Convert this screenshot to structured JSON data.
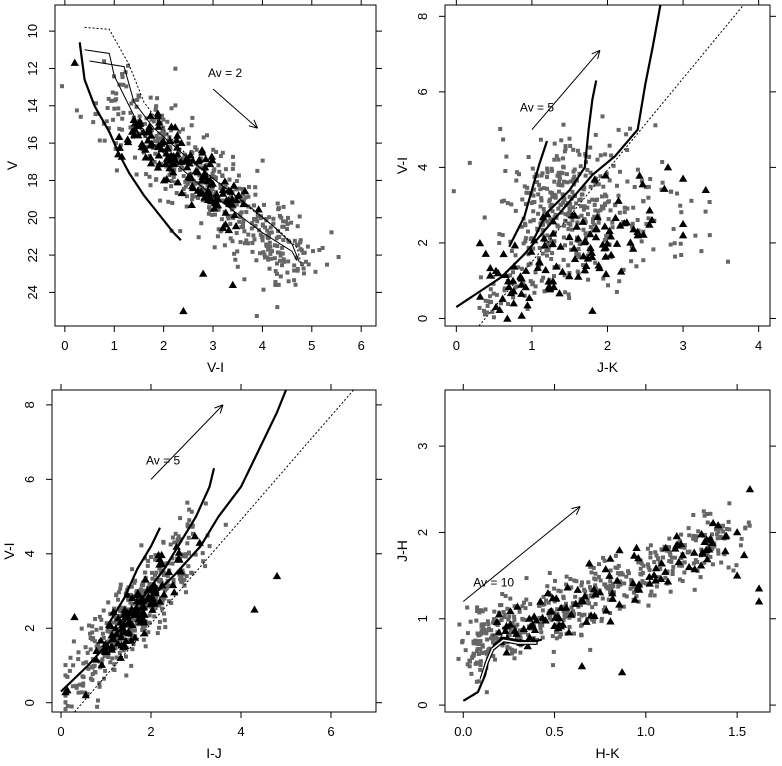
{
  "chart_data": [
    {
      "type": "scatter",
      "panel": "top-left",
      "xlabel": "V-I",
      "ylabel": "V",
      "xlim": [
        -0.2,
        6.3
      ],
      "ylim": [
        25.8,
        8.6
      ],
      "y_reversed": true,
      "xticks": [
        0,
        1,
        2,
        3,
        4,
        5,
        6
      ],
      "yticks": [
        10,
        12,
        14,
        16,
        18,
        20,
        22,
        24
      ],
      "annotation": {
        "text": "Av = 2",
        "arrow_from": [
          3.0,
          13.1
        ],
        "arrow_to": [
          3.9,
          15.2
        ]
      },
      "field_points": {
        "color": "#666666",
        "n": 460,
        "seed": 11
      },
      "triangles": {
        "color": "#000000",
        "n": 150,
        "seed": 12,
        "extra": [
          [
            2.4,
            25.0
          ],
          [
            2.8,
            23.0
          ],
          [
            3.4,
            23.6
          ],
          [
            0.2,
            11.7
          ]
        ]
      },
      "curves": [
        {
          "style": "thick",
          "points": [
            [
              0.3,
              10.6
            ],
            [
              0.4,
              12.6
            ],
            [
              0.6,
              14.0
            ],
            [
              0.9,
              15.4
            ],
            [
              1.1,
              16.6
            ],
            [
              1.3,
              17.6
            ],
            [
              1.6,
              18.8
            ],
            [
              1.9,
              19.8
            ],
            [
              2.2,
              20.8
            ],
            [
              2.35,
              21.2
            ]
          ]
        },
        {
          "style": "thin",
          "points": [
            [
              0.4,
              11.0
            ],
            [
              0.9,
              11.2
            ],
            [
              1.0,
              12.4
            ],
            [
              1.3,
              14.0
            ],
            [
              1.6,
              15.6
            ],
            [
              2.2,
              17.0
            ],
            [
              2.8,
              18.4
            ],
            [
              3.4,
              19.6
            ],
            [
              4.0,
              20.8
            ],
            [
              4.6,
              21.8
            ],
            [
              4.7,
              22.3
            ]
          ]
        },
        {
          "style": "thin",
          "points": [
            [
              0.5,
              11.6
            ],
            [
              1.2,
              11.9
            ],
            [
              1.4,
              13.8
            ],
            [
              1.8,
              15.2
            ],
            [
              2.4,
              16.6
            ],
            [
              3.0,
              17.9
            ],
            [
              3.6,
              19.1
            ],
            [
              4.2,
              20.4
            ],
            [
              4.6,
              21.4
            ],
            [
              4.75,
              22.4
            ]
          ]
        },
        {
          "style": "dotted",
          "points": [
            [
              0.4,
              9.8
            ],
            [
              0.9,
              9.9
            ],
            [
              1.3,
              11.8
            ],
            [
              1.6,
              13.8
            ],
            [
              2.1,
              15.6
            ],
            [
              2.6,
              17.0
            ],
            [
              3.2,
              18.3
            ],
            [
              3.8,
              19.6
            ],
            [
              4.3,
              20.6
            ],
            [
              4.7,
              21.6
            ],
            [
              4.8,
              22.6
            ]
          ]
        }
      ]
    },
    {
      "type": "scatter",
      "panel": "top-right",
      "xlabel": "J-K",
      "ylabel": "V-I",
      "xlim": [
        -0.15,
        4.15
      ],
      "ylim": [
        -0.2,
        8.3
      ],
      "xticks": [
        0,
        1,
        2,
        3,
        4
      ],
      "yticks": [
        0,
        2,
        4,
        6,
        8
      ],
      "annotation": {
        "text": "Av = 5",
        "arrow_from": [
          1.0,
          5.0
        ],
        "arrow_to": [
          1.9,
          7.1
        ]
      },
      "field_points": {
        "color": "#666666",
        "n": 430,
        "seed": 21
      },
      "triangles": {
        "color": "#000000",
        "n": 110,
        "seed": 22,
        "extra": [
          [
            2.8,
            4.0
          ],
          [
            3.0,
            3.7
          ],
          [
            3.3,
            3.4
          ],
          [
            3.0,
            2.5
          ],
          [
            3.0,
            2.2
          ],
          [
            2.4,
            2.2
          ],
          [
            1.8,
            0.2
          ]
        ]
      },
      "curves": [
        {
          "style": "thick",
          "points": [
            [
              0.0,
              0.3
            ],
            [
              0.3,
              0.7
            ],
            [
              0.6,
              1.1
            ],
            [
              0.9,
              1.7
            ],
            [
              1.2,
              2.4
            ],
            [
              1.5,
              3.1
            ],
            [
              1.8,
              3.8
            ],
            [
              2.1,
              4.3
            ],
            [
              2.4,
              5.0
            ],
            [
              2.5,
              6.2
            ],
            [
              2.6,
              7.2
            ],
            [
              2.7,
              8.3
            ]
          ]
        },
        {
          "style": "thick",
          "points": [
            [
              1.0,
              2.0
            ],
            [
              1.2,
              2.8
            ],
            [
              1.5,
              3.4
            ],
            [
              1.7,
              4.0
            ],
            [
              1.75,
              5.0
            ],
            [
              1.8,
              5.8
            ],
            [
              1.85,
              6.3
            ]
          ]
        },
        {
          "style": "thick",
          "points": [
            [
              0.7,
              1.9
            ],
            [
              0.9,
              2.7
            ],
            [
              1.0,
              3.4
            ],
            [
              1.1,
              4.1
            ],
            [
              1.2,
              4.7
            ]
          ]
        },
        {
          "style": "dotted",
          "points": [
            [
              0.3,
              -0.2
            ],
            [
              3.8,
              8.3
            ]
          ]
        }
      ]
    },
    {
      "type": "scatter",
      "panel": "bottom-left",
      "xlabel": "I-J",
      "ylabel": "V-I",
      "xlim": [
        -0.2,
        7.0
      ],
      "ylim": [
        -0.25,
        8.4
      ],
      "xticks": [
        0,
        2,
        4,
        6
      ],
      "yticks": [
        0,
        2,
        4,
        6,
        8
      ],
      "annotation": {
        "text": "Av = 5",
        "arrow_from": [
          2.0,
          6.0
        ],
        "arrow_to": [
          3.6,
          8.0
        ]
      },
      "field_points": {
        "color": "#666666",
        "n": 430,
        "seed": 31
      },
      "triangles": {
        "color": "#000000",
        "n": 110,
        "seed": 32,
        "extra": [
          [
            0.3,
            2.3
          ],
          [
            4.3,
            2.5
          ],
          [
            4.8,
            3.4
          ],
          [
            0.55,
            0.2
          ]
        ]
      },
      "curves": [
        {
          "style": "thick",
          "points": [
            [
              0.0,
              0.3
            ],
            [
              0.6,
              1.0
            ],
            [
              1.2,
              1.8
            ],
            [
              1.8,
              2.6
            ],
            [
              2.5,
              3.4
            ],
            [
              3.1,
              4.2
            ],
            [
              3.5,
              5.0
            ],
            [
              4.0,
              5.8
            ],
            [
              4.4,
              6.8
            ],
            [
              4.8,
              7.8
            ],
            [
              5.0,
              8.4
            ]
          ]
        },
        {
          "style": "thick",
          "points": [
            [
              1.3,
              2.0
            ],
            [
              1.8,
              2.8
            ],
            [
              2.3,
              3.6
            ],
            [
              2.7,
              4.4
            ],
            [
              3.0,
              5.0
            ],
            [
              3.3,
              5.8
            ],
            [
              3.4,
              6.3
            ]
          ]
        },
        {
          "style": "thick",
          "points": [
            [
              1.0,
              2.0
            ],
            [
              1.4,
              2.8
            ],
            [
              1.7,
              3.6
            ],
            [
              2.0,
              4.2
            ],
            [
              2.2,
              4.7
            ]
          ]
        },
        {
          "style": "dotted",
          "points": [
            [
              0.3,
              -0.25
            ],
            [
              6.5,
              8.4
            ]
          ]
        }
      ]
    },
    {
      "type": "scatter",
      "panel": "bottom-right",
      "xlabel": "H-K",
      "ylabel": "J-H",
      "xlim": [
        -0.1,
        1.68
      ],
      "ylim": [
        -0.08,
        3.65
      ],
      "xticks": [
        0,
        0.5,
        1.0,
        1.5
      ],
      "xtick_labels": [
        "0.0",
        "0.5",
        "1.0",
        "1.5"
      ],
      "yticks": [
        0,
        1,
        2,
        3
      ],
      "annotation": {
        "text": "Av = 10",
        "arrow_from": [
          0.0,
          1.2
        ],
        "arrow_to": [
          0.64,
          2.3
        ]
      },
      "field_points": {
        "color": "#666666",
        "n": 520,
        "seed": 41
      },
      "triangles": {
        "color": "#000000",
        "n": 115,
        "seed": 42,
        "extra": [
          [
            1.57,
            2.5
          ],
          [
            1.62,
            1.35
          ],
          [
            1.62,
            1.2
          ],
          [
            1.5,
            1.5
          ],
          [
            0.87,
            0.38
          ],
          [
            0.65,
            0.45
          ]
        ]
      },
      "curves": [
        {
          "style": "thick",
          "points": [
            [
              0.0,
              0.05
            ],
            [
              0.08,
              0.15
            ],
            [
              0.12,
              0.35
            ],
            [
              0.14,
              0.55
            ],
            [
              0.17,
              0.7
            ],
            [
              0.22,
              0.78
            ],
            [
              0.3,
              0.75
            ],
            [
              0.38,
              0.73
            ],
            [
              0.43,
              0.76
            ]
          ]
        },
        {
          "style": "white",
          "points": [
            [
              0.1,
              0.3
            ],
            [
              0.13,
              0.5
            ],
            [
              0.16,
              0.65
            ],
            [
              0.22,
              0.75
            ],
            [
              0.3,
              0.72
            ],
            [
              0.4,
              0.72
            ]
          ]
        },
        {
          "style": "dotted",
          "points": [
            [
              0.16,
              0.8
            ],
            [
              0.22,
              0.9
            ],
            [
              0.3,
              0.92
            ]
          ]
        }
      ]
    }
  ]
}
